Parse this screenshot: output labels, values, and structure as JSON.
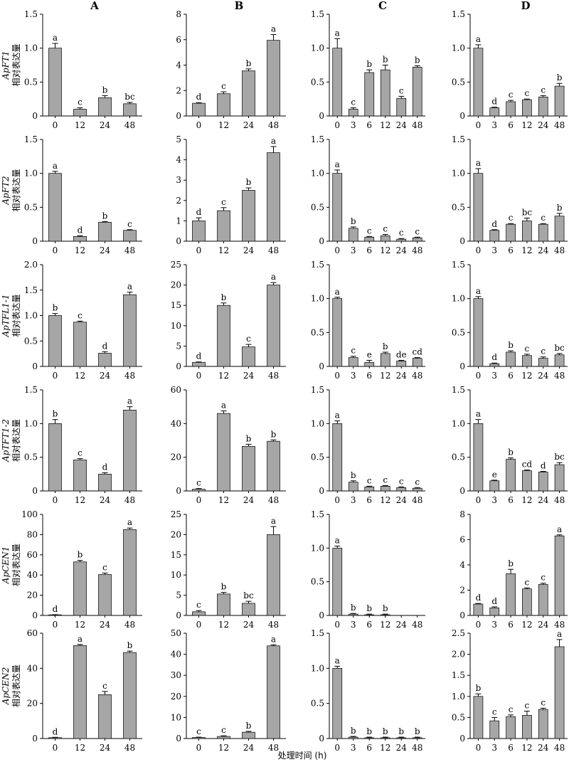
{
  "columns": [
    "A",
    "B",
    "C",
    "D"
  ],
  "ylabel": "相对表达量",
  "xlabel": "处理时间 (h)",
  "chart_data": [
    {
      "type": "bar",
      "row": 0,
      "col": 0,
      "gene": "ApFT1",
      "categories": [
        "0",
        "12",
        "24",
        "48"
      ],
      "values": [
        1.0,
        0.1,
        0.27,
        0.18
      ],
      "errors": [
        0.07,
        0.02,
        0.03,
        0.02
      ],
      "letters": [
        "a",
        "c",
        "b",
        "bc"
      ],
      "ylim": [
        0,
        1.5
      ],
      "yticks": [
        "0",
        "0.5",
        "1.0",
        "1.5"
      ]
    },
    {
      "type": "bar",
      "row": 0,
      "col": 1,
      "gene": "ApFT1",
      "categories": [
        "0",
        "12",
        "24",
        "48"
      ],
      "values": [
        1.0,
        1.75,
        3.55,
        5.95
      ],
      "errors": [
        0.05,
        0.15,
        0.15,
        0.45
      ],
      "letters": [
        "d",
        "c",
        "b",
        "a"
      ],
      "ylim": [
        0,
        8
      ],
      "yticks": [
        "0",
        "2",
        "4",
        "6",
        "8"
      ]
    },
    {
      "type": "bar",
      "row": 0,
      "col": 2,
      "gene": "ApFT1",
      "categories": [
        "0",
        "3",
        "6",
        "12",
        "24",
        "48"
      ],
      "values": [
        1.0,
        0.1,
        0.64,
        0.68,
        0.26,
        0.72
      ],
      "errors": [
        0.14,
        0.02,
        0.04,
        0.07,
        0.03,
        0.02
      ],
      "letters": [
        "a",
        "c",
        "b",
        "b",
        "c",
        "b"
      ],
      "ylim": [
        0,
        1.5
      ],
      "yticks": [
        "0",
        "0.5",
        "1.0",
        "1.5"
      ]
    },
    {
      "type": "bar",
      "row": 0,
      "col": 3,
      "gene": "ApFT1",
      "categories": [
        "0",
        "3",
        "6",
        "12",
        "24",
        "48"
      ],
      "values": [
        1.0,
        0.12,
        0.21,
        0.24,
        0.28,
        0.44
      ],
      "errors": [
        0.05,
        0.01,
        0.02,
        0.01,
        0.02,
        0.04
      ],
      "letters": [
        "a",
        "d",
        "c",
        "c",
        "c",
        "b"
      ],
      "ylim": [
        0,
        1.5
      ],
      "yticks": [
        "0",
        "0.5",
        "1.0",
        "1.5"
      ]
    },
    {
      "type": "bar",
      "row": 1,
      "col": 0,
      "gene": "ApFT2",
      "categories": [
        "0",
        "12",
        "24",
        "48"
      ],
      "values": [
        1.0,
        0.07,
        0.28,
        0.16
      ],
      "errors": [
        0.03,
        0.01,
        0.01,
        0.01
      ],
      "letters": [
        "a",
        "d",
        "b",
        "c"
      ],
      "ylim": [
        0,
        1.5
      ],
      "yticks": [
        "0",
        "0.5",
        "1.0",
        "1.5"
      ]
    },
    {
      "type": "bar",
      "row": 1,
      "col": 1,
      "gene": "ApFT2",
      "categories": [
        "0",
        "12",
        "24",
        "48"
      ],
      "values": [
        1.0,
        1.5,
        2.5,
        4.35
      ],
      "errors": [
        0.15,
        0.15,
        0.12,
        0.3
      ],
      "letters": [
        "d",
        "c",
        "b",
        "a"
      ],
      "ylim": [
        0,
        5
      ],
      "yticks": [
        "0",
        "1",
        "2",
        "3",
        "4",
        "5"
      ]
    },
    {
      "type": "bar",
      "row": 1,
      "col": 2,
      "gene": "ApFT2",
      "categories": [
        "0",
        "3",
        "6",
        "12",
        "24",
        "48"
      ],
      "values": [
        1.0,
        0.19,
        0.06,
        0.08,
        0.03,
        0.05
      ],
      "errors": [
        0.05,
        0.02,
        0.01,
        0.02,
        0.01,
        0.01
      ],
      "letters": [
        "a",
        "b",
        "c",
        "c",
        "c",
        "c"
      ],
      "ylim": [
        0,
        1.5
      ],
      "yticks": [
        "0",
        "0.5",
        "1.0",
        "1.5"
      ]
    },
    {
      "type": "bar",
      "row": 1,
      "col": 3,
      "gene": "ApFT2",
      "categories": [
        "0",
        "3",
        "6",
        "12",
        "24",
        "48"
      ],
      "values": [
        1.0,
        0.16,
        0.25,
        0.3,
        0.25,
        0.37
      ],
      "errors": [
        0.07,
        0.01,
        0.01,
        0.04,
        0.01,
        0.04
      ],
      "letters": [
        "a",
        "d",
        "c",
        "bc",
        "c",
        "b"
      ],
      "ylim": [
        0,
        1.5
      ],
      "yticks": [
        "0",
        "0.5",
        "1.0",
        "1.5"
      ]
    },
    {
      "type": "bar",
      "row": 2,
      "col": 0,
      "gene": "ApTFL1-1",
      "categories": [
        "0",
        "12",
        "24",
        "48"
      ],
      "values": [
        1.0,
        0.87,
        0.26,
        1.41
      ],
      "errors": [
        0.04,
        0.02,
        0.03,
        0.05
      ],
      "letters": [
        "b",
        "c",
        "d",
        "a"
      ],
      "ylim": [
        0,
        2.0
      ],
      "yticks": [
        "0",
        "0.5",
        "1.0",
        "1.5",
        "2.0"
      ]
    },
    {
      "type": "bar",
      "row": 2,
      "col": 1,
      "gene": "ApTFL1-1",
      "categories": [
        "0",
        "12",
        "24",
        "48"
      ],
      "values": [
        1.0,
        15.0,
        4.8,
        20.0
      ],
      "errors": [
        0.1,
        0.6,
        0.6,
        0.6
      ],
      "letters": [
        "d",
        "b",
        "c",
        "a"
      ],
      "ylim": [
        0,
        25
      ],
      "yticks": [
        "0",
        "5",
        "10",
        "15",
        "20",
        "25"
      ]
    },
    {
      "type": "bar",
      "row": 2,
      "col": 2,
      "gene": "ApTFL1-1",
      "categories": [
        "0",
        "3",
        "6",
        "12",
        "24",
        "48"
      ],
      "values": [
        1.0,
        0.13,
        0.06,
        0.19,
        0.08,
        0.12
      ],
      "errors": [
        0.02,
        0.02,
        0.03,
        0.02,
        0.01,
        0.01
      ],
      "letters": [
        "a",
        "c",
        "e",
        "b",
        "de",
        "cd"
      ],
      "ylim": [
        0,
        1.5
      ],
      "yticks": [
        "0",
        "0.5",
        "1.0",
        "1.5"
      ]
    },
    {
      "type": "bar",
      "row": 2,
      "col": 3,
      "gene": "ApTFL1-1",
      "categories": [
        "0",
        "3",
        "6",
        "12",
        "24",
        "48"
      ],
      "values": [
        1.0,
        0.04,
        0.21,
        0.16,
        0.12,
        0.17
      ],
      "errors": [
        0.03,
        0.01,
        0.02,
        0.02,
        0.02,
        0.02
      ],
      "letters": [
        "a",
        "d",
        "b",
        "c",
        "c",
        "bc"
      ],
      "ylim": [
        0,
        1.5
      ],
      "yticks": [
        "0",
        "0.5",
        "1.0",
        "1.5"
      ]
    },
    {
      "type": "bar",
      "row": 3,
      "col": 0,
      "gene": "ApTFT1-2",
      "categories": [
        "0",
        "12",
        "24",
        "48"
      ],
      "values": [
        1.0,
        0.46,
        0.25,
        1.2
      ],
      "errors": [
        0.06,
        0.02,
        0.02,
        0.05
      ],
      "letters": [
        "b",
        "c",
        "d",
        "a"
      ],
      "ylim": [
        0,
        1.5
      ],
      "yticks": [
        "0",
        "0.5",
        "1.0",
        "1.5"
      ]
    },
    {
      "type": "bar",
      "row": 3,
      "col": 1,
      "gene": "ApTFT1-2",
      "categories": [
        "0",
        "12",
        "24",
        "48"
      ],
      "values": [
        1.0,
        46.0,
        26.5,
        29.5
      ],
      "errors": [
        0.4,
        1.5,
        1.2,
        0.8
      ],
      "letters": [
        "c",
        "a",
        "b",
        "b"
      ],
      "ylim": [
        0,
        60
      ],
      "yticks": [
        "0",
        "20",
        "40",
        "60"
      ]
    },
    {
      "type": "bar",
      "row": 3,
      "col": 2,
      "gene": "ApTFT1-2",
      "categories": [
        "0",
        "3",
        "6",
        "12",
        "24",
        "48"
      ],
      "values": [
        1.0,
        0.13,
        0.06,
        0.07,
        0.05,
        0.04
      ],
      "errors": [
        0.04,
        0.02,
        0.01,
        0.01,
        0.01,
        0.01
      ],
      "letters": [
        "a",
        "b",
        "c",
        "c",
        "c",
        "c"
      ],
      "ylim": [
        0,
        1.5
      ],
      "yticks": [
        "0",
        "0.5",
        "1.0",
        "1.5"
      ]
    },
    {
      "type": "bar",
      "row": 3,
      "col": 3,
      "gene": "ApTFT1-2",
      "categories": [
        "0",
        "3",
        "6",
        "12",
        "24",
        "48"
      ],
      "values": [
        1.0,
        0.15,
        0.47,
        0.3,
        0.28,
        0.39
      ],
      "errors": [
        0.06,
        0.01,
        0.02,
        0.01,
        0.01,
        0.03
      ],
      "letters": [
        "a",
        "e",
        "b",
        "cd",
        "d",
        "bc"
      ],
      "ylim": [
        0,
        1.5
      ],
      "yticks": [
        "0",
        "0.5",
        "1.0",
        "1.5"
      ]
    },
    {
      "type": "bar",
      "row": 4,
      "col": 0,
      "gene": "ApCEN1",
      "categories": [
        "0",
        "12",
        "24",
        "48"
      ],
      "values": [
        0.6,
        53.0,
        40.5,
        85.0
      ],
      "errors": [
        0.2,
        1.5,
        1.5,
        1.5
      ],
      "letters": [
        "d",
        "b",
        "c",
        "a"
      ],
      "ylim": [
        0,
        100
      ],
      "yticks": [
        "0",
        "20",
        "40",
        "60",
        "80",
        "100"
      ]
    },
    {
      "type": "bar",
      "row": 4,
      "col": 1,
      "gene": "ApCEN1",
      "categories": [
        "0",
        "12",
        "24",
        "48"
      ],
      "values": [
        0.9,
        5.3,
        3.0,
        20.0
      ],
      "errors": [
        0.3,
        0.4,
        0.5,
        2.0
      ],
      "letters": [
        "c",
        "b",
        "bc",
        "a"
      ],
      "ylim": [
        0,
        25
      ],
      "yticks": [
        "0",
        "5",
        "10",
        "15",
        "20",
        "25"
      ]
    },
    {
      "type": "bar",
      "row": 4,
      "col": 2,
      "gene": "ApCEN1",
      "categories": [
        "0",
        "3",
        "6",
        "12",
        "24",
        "48"
      ],
      "values": [
        1.0,
        0.02,
        0.01,
        0.01,
        0,
        0
      ],
      "errors": [
        0.03,
        0.01,
        0.01,
        0.01,
        0,
        0
      ],
      "letters": [
        "a",
        "b",
        "b",
        "b",
        "",
        ""
      ],
      "ylim": [
        0,
        1.5
      ],
      "yticks": [
        "0",
        "0.5",
        "1.0",
        "1.5"
      ]
    },
    {
      "type": "bar",
      "row": 4,
      "col": 3,
      "gene": "ApCEN1",
      "categories": [
        "0",
        "3",
        "6",
        "12",
        "24",
        "48"
      ],
      "values": [
        0.9,
        0.6,
        3.3,
        2.1,
        2.45,
        6.3
      ],
      "errors": [
        0.05,
        0.08,
        0.35,
        0.08,
        0.1,
        0.08
      ],
      "letters": [
        "d",
        "d",
        "b",
        "c",
        "c",
        "a"
      ],
      "ylim": [
        0,
        8
      ],
      "yticks": [
        "0",
        "2",
        "4",
        "6",
        "8"
      ]
    },
    {
      "type": "bar",
      "row": 5,
      "col": 0,
      "gene": "ApCEN2",
      "categories": [
        "0",
        "12",
        "24",
        "48"
      ],
      "values": [
        0.5,
        53.0,
        25.0,
        49.0
      ],
      "errors": [
        0.2,
        0.6,
        1.8,
        0.8
      ],
      "letters": [
        "d",
        "a",
        "c",
        "b"
      ],
      "ylim": [
        0,
        60
      ],
      "yticks": [
        "0",
        "20",
        "40",
        "60"
      ]
    },
    {
      "type": "bar",
      "row": 5,
      "col": 1,
      "gene": "ApCEN2",
      "categories": [
        "0",
        "12",
        "24",
        "48"
      ],
      "values": [
        0.5,
        1.0,
        3.0,
        44.0
      ],
      "errors": [
        0.15,
        0.3,
        0.4,
        0.5
      ],
      "letters": [
        "c",
        "c",
        "b",
        "a"
      ],
      "ylim": [
        0,
        50
      ],
      "yticks": [
        "0",
        "10",
        "20",
        "30",
        "40",
        "50"
      ]
    },
    {
      "type": "bar",
      "row": 5,
      "col": 2,
      "gene": "ApCEN2",
      "categories": [
        "0",
        "3",
        "6",
        "12",
        "24",
        "48"
      ],
      "values": [
        1.0,
        0.02,
        0.01,
        0.01,
        0.01,
        0.01
      ],
      "errors": [
        0.03,
        0.01,
        0.01,
        0.01,
        0.01,
        0.01
      ],
      "letters": [
        "a",
        "b",
        "b",
        "b",
        "b",
        "b"
      ],
      "ylim": [
        0,
        1.5
      ],
      "yticks": [
        "0",
        "0.5",
        "1.0",
        "1.5"
      ]
    },
    {
      "type": "bar",
      "row": 5,
      "col": 3,
      "gene": "ApCEN2",
      "categories": [
        "0",
        "3",
        "6",
        "12",
        "24",
        "48"
      ],
      "values": [
        1.0,
        0.42,
        0.52,
        0.55,
        0.69,
        2.18
      ],
      "errors": [
        0.06,
        0.08,
        0.04,
        0.1,
        0.03,
        0.17
      ],
      "letters": [
        "b",
        "c",
        "c",
        "c",
        "c",
        "a"
      ],
      "ylim": [
        0,
        2.5
      ],
      "yticks": [
        "0",
        "0.5",
        "1.0",
        "1.5",
        "2.0",
        "2.5"
      ]
    }
  ],
  "colors": {
    "bar": "#a6a6a6",
    "axis": "#000000"
  }
}
